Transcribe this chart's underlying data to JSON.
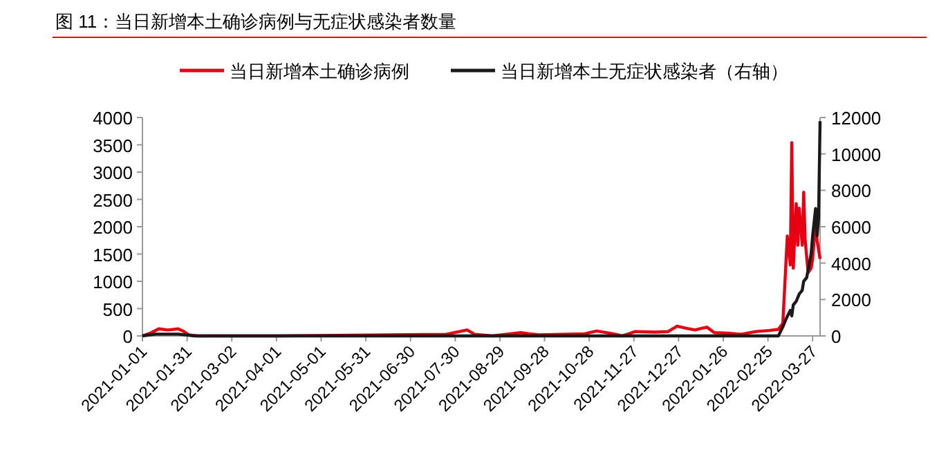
{
  "chart_data": {
    "type": "line",
    "title": "图 11：当日新增本土确诊病例与无症状感染者数量",
    "legend": "top",
    "xlim": [
      "2021-01-01",
      "2022-04-01"
    ],
    "xticks": [
      "2021-01-01",
      "2021-01-31",
      "2021-03-02",
      "2021-04-01",
      "2021-05-01",
      "2021-05-31",
      "2021-06-30",
      "2021-07-30",
      "2021-08-29",
      "2021-09-28",
      "2021-10-28",
      "2021-11-27",
      "2021-12-27",
      "2022-01-26",
      "2022-02-25",
      "2022-03-27"
    ],
    "ylim": [
      0,
      4000
    ],
    "yticks": [
      0,
      500,
      1000,
      1500,
      2000,
      2500,
      3000,
      3500,
      4000
    ],
    "y2lim": [
      0,
      12000
    ],
    "y2ticks": [
      0,
      2000,
      4000,
      6000,
      8000,
      10000,
      12000
    ],
    "series": [
      {
        "name": "当日新增本土确诊病例",
        "color": "#e60012",
        "x": [
          "2021-01-01",
          "2021-01-07",
          "2021-01-12",
          "2021-01-18",
          "2021-01-25",
          "2021-01-29",
          "2021-02-01",
          "2021-02-07",
          "2021-04-01",
          "2021-07-24",
          "2021-08-07",
          "2021-08-12",
          "2021-08-24",
          "2021-09-12",
          "2021-09-24",
          "2021-10-25",
          "2021-11-02",
          "2021-11-13",
          "2021-11-19",
          "2021-11-28",
          "2021-12-11",
          "2021-12-20",
          "2021-12-26",
          "2022-01-01",
          "2022-01-07",
          "2022-01-15",
          "2022-01-20",
          "2022-01-29",
          "2022-02-07",
          "2022-02-17",
          "2022-02-26",
          "2022-03-04",
          "2022-03-07",
          "2022-03-10",
          "2022-03-12",
          "2022-03-13",
          "2022-03-14",
          "2022-03-16",
          "2022-03-17",
          "2022-03-18",
          "2022-03-20",
          "2022-03-21",
          "2022-03-22",
          "2022-03-24",
          "2022-03-26",
          "2022-03-27",
          "2022-03-29",
          "2022-03-30",
          "2022-04-01"
        ],
        "values": [
          0,
          60,
          130,
          110,
          130,
          80,
          20,
          0,
          0,
          30,
          110,
          30,
          0,
          60,
          20,
          40,
          90,
          40,
          0,
          80,
          70,
          80,
          180,
          140,
          110,
          160,
          60,
          50,
          30,
          80,
          100,
          120,
          230,
          1830,
          1300,
          3540,
          1240,
          2420,
          1660,
          2340,
          1660,
          2630,
          1750,
          1160,
          1240,
          1410,
          2090,
          1750,
          1410
        ]
      },
      {
        "name": "当日新增本土无症状感染者（右轴）",
        "color": "#1a1a1a",
        "axis": "y2",
        "x": [
          "2021-01-01",
          "2021-01-10",
          "2021-01-25",
          "2021-02-05",
          "2022-02-26",
          "2022-03-04",
          "2022-03-07",
          "2022-03-09",
          "2022-03-12",
          "2022-03-13",
          "2022-03-14",
          "2022-03-16",
          "2022-03-18",
          "2022-03-20",
          "2022-03-21",
          "2022-03-23",
          "2022-03-26",
          "2022-03-27",
          "2022-03-29",
          "2022-03-30",
          "2022-03-31",
          "2022-04-01"
        ],
        "values": [
          0,
          100,
          100,
          0,
          0,
          0,
          500,
          900,
          1400,
          1100,
          1700,
          1900,
          2300,
          2500,
          3000,
          3200,
          4500,
          5500,
          7000,
          5500,
          6500,
          11800
        ]
      }
    ]
  }
}
